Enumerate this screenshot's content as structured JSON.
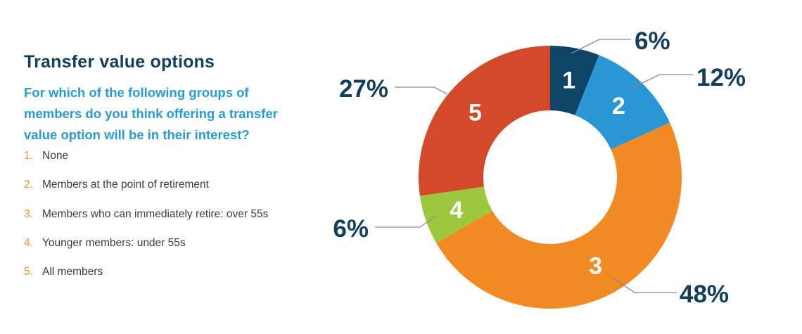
{
  "title": "Transfer value options",
  "subtitle": "For which of the following groups of members do you think offering a transfer value option will be in their interest?",
  "options": [
    {
      "num": "1.",
      "text": "None"
    },
    {
      "num": "2.",
      "text": "Members at the point of retirement"
    },
    {
      "num": "3.",
      "text": "Members who can immediately retire: over 55s"
    },
    {
      "num": "4.",
      "text": "Younger members: under 55s"
    },
    {
      "num": "5.",
      "text": "All members"
    }
  ],
  "colors": {
    "title": "#133f5c",
    "subtitle": "#2a9ad6",
    "option_number": "#f2922c"
  },
  "chart_data": {
    "type": "pie",
    "donut": true,
    "categories": [
      "1",
      "2",
      "3",
      "4",
      "5"
    ],
    "values": [
      6,
      12,
      48,
      6,
      27
    ],
    "labels": [
      "6%",
      "12%",
      "48%",
      "6%",
      "27%"
    ],
    "colors": [
      "#0f4368",
      "#2a96d4",
      "#f28a24",
      "#9cc83d",
      "#d24a2a"
    ],
    "start": "top, clockwise"
  }
}
